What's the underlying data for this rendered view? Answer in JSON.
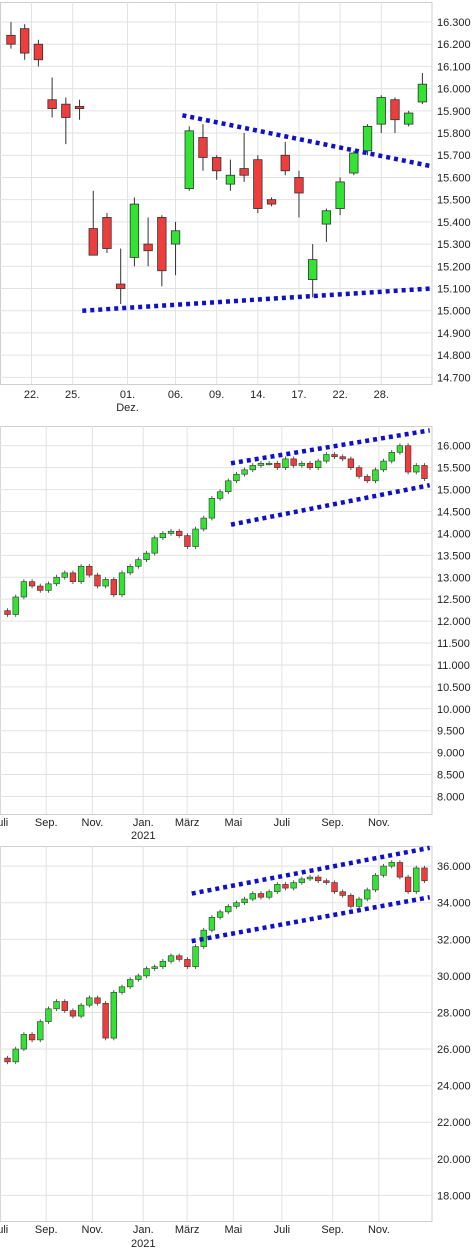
{
  "chart_data": [
    {
      "type": "candlestick",
      "colors": {
        "up": "#33e333",
        "down": "#ee3d3d",
        "trendline": "#1010c8",
        "grid": "#e2e2e2"
      },
      "y_ticks": [
        "14.700",
        "14.800",
        "14.900",
        "15.000",
        "15.100",
        "15.200",
        "15.300",
        "15.400",
        "15.500",
        "15.600",
        "15.700",
        "15.800",
        "15.900",
        "16.000",
        "16.100",
        "16.200",
        "16.300"
      ],
      "y_values": [
        14700,
        14800,
        14900,
        15000,
        15100,
        15200,
        15300,
        15400,
        15500,
        15600,
        15700,
        15800,
        15900,
        16000,
        16100,
        16200,
        16300
      ],
      "ylim": [
        14670,
        16390
      ],
      "x_ticks": [
        "22.",
        "25.",
        "01.",
        "06.",
        "09.",
        "14.",
        "17.",
        "22.",
        "28."
      ],
      "x_ticks_index": [
        1.5,
        4.5,
        8.5,
        12,
        15,
        18,
        21,
        24,
        27
      ],
      "x_sublabels": [
        {
          "label": "Dez.",
          "index": 8.5
        }
      ],
      "xlim": [
        -0.8,
        30.7
      ],
      "candles": [
        {
          "i": 0,
          "o": 16240,
          "h": 16300,
          "l": 16180,
          "c": 16200
        },
        {
          "i": 1,
          "o": 16270,
          "h": 16290,
          "l": 16130,
          "c": 16160
        },
        {
          "i": 2,
          "o": 16200,
          "h": 16220,
          "l": 16100,
          "c": 16130
        },
        {
          "i": 3,
          "o": 15950,
          "h": 16050,
          "l": 15870,
          "c": 15910
        },
        {
          "i": 4,
          "o": 15930,
          "h": 15960,
          "l": 15750,
          "c": 15870
        },
        {
          "i": 5,
          "o": 15920,
          "h": 15950,
          "l": 15860,
          "c": 15910
        },
        {
          "i": 6,
          "o": 15370,
          "h": 15540,
          "l": 15250,
          "c": 15250
        },
        {
          "i": 7,
          "o": 15420,
          "h": 15440,
          "l": 15260,
          "c": 15280
        },
        {
          "i": 8,
          "o": 15120,
          "h": 15280,
          "l": 15030,
          "c": 15100
        },
        {
          "i": 9,
          "o": 15240,
          "h": 15510,
          "l": 15200,
          "c": 15480
        },
        {
          "i": 10,
          "o": 15300,
          "h": 15420,
          "l": 15200,
          "c": 15270
        },
        {
          "i": 11,
          "o": 15420,
          "h": 15430,
          "l": 15110,
          "c": 15180
        },
        {
          "i": 12,
          "o": 15300,
          "h": 15400,
          "l": 15160,
          "c": 15360
        },
        {
          "i": 13,
          "o": 15550,
          "h": 15830,
          "l": 15540,
          "c": 15810
        },
        {
          "i": 14,
          "o": 15780,
          "h": 15840,
          "l": 15630,
          "c": 15690
        },
        {
          "i": 15,
          "o": 15690,
          "h": 15700,
          "l": 15590,
          "c": 15630
        },
        {
          "i": 16,
          "o": 15570,
          "h": 15680,
          "l": 15540,
          "c": 15610
        },
        {
          "i": 17,
          "o": 15640,
          "h": 15800,
          "l": 15580,
          "c": 15610
        },
        {
          "i": 18,
          "o": 15680,
          "h": 15700,
          "l": 15440,
          "c": 15460
        },
        {
          "i": 19,
          "o": 15500,
          "h": 15510,
          "l": 15470,
          "c": 15480
        },
        {
          "i": 20,
          "o": 15700,
          "h": 15760,
          "l": 15610,
          "c": 15630
        },
        {
          "i": 21,
          "o": 15600,
          "h": 15630,
          "l": 15420,
          "c": 15530
        },
        {
          "i": 22,
          "o": 15140,
          "h": 15300,
          "l": 15060,
          "c": 15230
        },
        {
          "i": 23,
          "o": 15390,
          "h": 15460,
          "l": 15310,
          "c": 15450
        },
        {
          "i": 24,
          "o": 15460,
          "h": 15600,
          "l": 15430,
          "c": 15580
        },
        {
          "i": 25,
          "o": 15620,
          "h": 15720,
          "l": 15610,
          "c": 15710
        },
        {
          "i": 26,
          "o": 15720,
          "h": 15840,
          "l": 15700,
          "c": 15830
        },
        {
          "i": 27,
          "o": 15840,
          "h": 15970,
          "l": 15800,
          "c": 15960
        },
        {
          "i": 28,
          "o": 15950,
          "h": 15960,
          "l": 15800,
          "c": 15860
        },
        {
          "i": 29,
          "o": 15840,
          "h": 15900,
          "l": 15830,
          "c": 15890
        },
        {
          "i": 30,
          "o": 15940,
          "h": 16070,
          "l": 15930,
          "c": 16020
        }
      ],
      "trendlines": [
        {
          "x1": 12.5,
          "y1": 15880,
          "x2": 30.7,
          "y2": 15650
        },
        {
          "x1": 5.2,
          "y1": 15000,
          "x2": 30.7,
          "y2": 15100
        }
      ]
    },
    {
      "type": "candlestick",
      "colors": {
        "up": "#33e333",
        "down": "#ee3d3d",
        "trendline": "#1010c8",
        "grid": "#e2e2e2"
      },
      "y_ticks": [
        "8.000",
        "8.500",
        "9.000",
        "9.500",
        "10.000",
        "10.500",
        "11.000",
        "11.500",
        "12.000",
        "12.500",
        "13.000",
        "13.500",
        "14.000",
        "14.500",
        "15.000",
        "15.500",
        "16.000"
      ],
      "y_values": [
        8000,
        8500,
        9000,
        9500,
        10000,
        10500,
        11000,
        11500,
        12000,
        12500,
        13000,
        13500,
        14000,
        14500,
        15000,
        15500,
        16000
      ],
      "ylim": [
        7600,
        16450
      ],
      "x_ticks": [
        "Juli",
        "Sep.",
        "Nov.",
        "Jan.",
        "März",
        "Mai",
        "Juli",
        "Sep.",
        "Nov."
      ],
      "x_ticks_month": [
        0,
        2,
        4,
        6.2,
        8.1,
        10.1,
        12.2,
        14.4,
        16.4
      ],
      "x_sublabels": [
        {
          "label": "2021",
          "month": 6.2
        }
      ],
      "xlim": [
        0,
        18.7
      ],
      "closes": [
        12150,
        12550,
        12900,
        12800,
        12700,
        12850,
        13000,
        13100,
        12900,
        13250,
        13050,
        12800,
        12950,
        12600,
        13100,
        13250,
        13400,
        13550,
        13900,
        14000,
        14050,
        13950,
        13700,
        14100,
        14350,
        14800,
        14950,
        15200,
        15350,
        15450,
        15550,
        15600,
        15600,
        15500,
        15700,
        15550,
        15600,
        15500,
        15650,
        15800,
        15750,
        15700,
        15500,
        15300,
        15200,
        15450,
        15650,
        15850,
        16000,
        15400,
        15550,
        15250
      ],
      "opens_adjust": [
        -1,
        1,
        -1,
        1,
        -1,
        1,
        1,
        -1,
        1,
        1,
        -1,
        -1,
        1,
        -1,
        1,
        1,
        -1,
        1,
        1,
        1,
        -1,
        -1,
        -1,
        1,
        1,
        1,
        1,
        1,
        1,
        -1,
        1,
        1,
        -1,
        -1,
        1,
        -1,
        1,
        -1,
        1,
        1,
        -1,
        -1,
        -1,
        -1,
        1,
        1,
        1,
        1,
        1,
        -1,
        1,
        -1
      ],
      "trendlines": [
        {
          "m1": 10.0,
          "y1": 15600,
          "m2": 18.6,
          "y2": 16350
        },
        {
          "m1": 10.0,
          "y1": 14200,
          "m2": 18.6,
          "y2": 15100
        }
      ]
    },
    {
      "type": "candlestick",
      "colors": {
        "up": "#33e333",
        "down": "#ee3d3d",
        "trendline": "#1010c8",
        "grid": "#e2e2e2"
      },
      "y_ticks": [
        "18.000",
        "20.000",
        "22.000",
        "24.000",
        "26.000",
        "28.000",
        "30.000",
        "32.000",
        "34.000",
        "36.000"
      ],
      "y_values": [
        18000,
        20000,
        22000,
        24000,
        26000,
        28000,
        30000,
        32000,
        34000,
        36000
      ],
      "ylim": [
        16600,
        37100
      ],
      "x_ticks": [
        "Juli",
        "Sep.",
        "Nov.",
        "Jan.",
        "März",
        "Mai",
        "Juli",
        "Sep.",
        "Nov."
      ],
      "x_ticks_month": [
        0,
        2,
        4,
        6.2,
        8.1,
        10.1,
        12.2,
        14.4,
        16.4
      ],
      "x_sublabels": [
        {
          "label": "2021",
          "month": 6.2
        }
      ],
      "xlim": [
        0,
        18.7
      ],
      "closes": [
        25300,
        26000,
        26800,
        26500,
        27500,
        28200,
        28600,
        28100,
        27800,
        28400,
        28800,
        28500,
        26600,
        29100,
        29400,
        29800,
        30000,
        30400,
        30500,
        30800,
        31100,
        30900,
        30500,
        31600,
        32500,
        33200,
        33500,
        33800,
        34000,
        34200,
        34500,
        34300,
        34600,
        35000,
        34800,
        35100,
        35300,
        35400,
        35200,
        35100,
        34600,
        34400,
        33800,
        34200,
        34700,
        35500,
        36000,
        36200,
        35400,
        34600,
        35900,
        35200
      ],
      "opens_adjust": [
        -1,
        1,
        1,
        -1,
        1,
        1,
        1,
        -1,
        -1,
        1,
        1,
        -1,
        -1,
        1,
        1,
        1,
        1,
        1,
        1,
        1,
        1,
        -1,
        -1,
        1,
        1,
        1,
        1,
        1,
        1,
        1,
        1,
        -1,
        1,
        1,
        -1,
        1,
        1,
        1,
        -1,
        -1,
        -1,
        -1,
        -1,
        1,
        1,
        1,
        1,
        1,
        -1,
        -1,
        1,
        -1
      ],
      "trendlines": [
        {
          "m1": 8.3,
          "y1": 34500,
          "m2": 18.6,
          "y2": 37000
        },
        {
          "m1": 8.3,
          "y1": 31900,
          "m2": 18.6,
          "y2": 34300
        }
      ]
    }
  ]
}
